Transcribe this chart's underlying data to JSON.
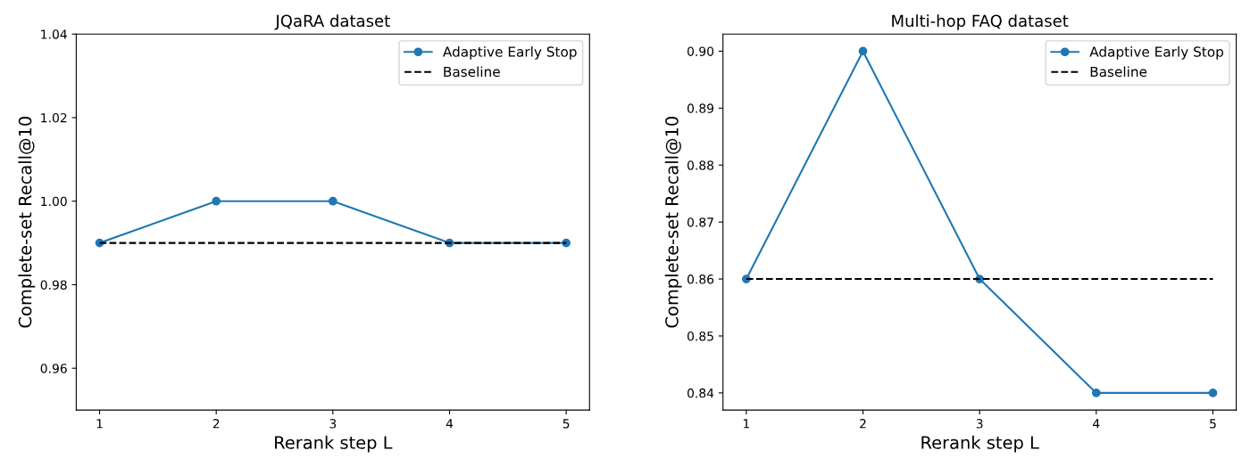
{
  "chart_data": [
    {
      "type": "line",
      "title": "JQaRA dataset",
      "xlabel": "Rerank step L",
      "ylabel": "Complete-set Recall@10",
      "x": [
        1,
        2,
        3,
        4,
        5
      ],
      "xlim": [
        0.8,
        5.2
      ],
      "xticks": [
        1,
        2,
        3,
        4,
        5
      ],
      "ylim": [
        0.95,
        1.04
      ],
      "yticks": [
        {
          "value": 0.96,
          "label": "0.96"
        },
        {
          "value": 0.98,
          "label": "0.98"
        },
        {
          "value": 1.0,
          "label": "1.00"
        },
        {
          "value": 1.02,
          "label": "1.02"
        },
        {
          "value": 1.04,
          "label": "1.04"
        }
      ],
      "legend": "top right",
      "grid": false,
      "series": [
        {
          "name": "Adaptive Early Stop",
          "color": "#1f77b4",
          "marker": "circle",
          "line_style": "solid",
          "values": [
            0.99,
            1.0,
            1.0,
            0.99,
            0.99
          ]
        },
        {
          "name": "Baseline",
          "color": "#000000",
          "marker": "none",
          "line_style": "dashed",
          "values": [
            0.99,
            0.99,
            0.99,
            0.99,
            0.99
          ]
        }
      ]
    },
    {
      "type": "line",
      "title": "Multi-hop FAQ dataset",
      "xlabel": "Rerank step L",
      "ylabel": "Complete-set Recall@10",
      "x": [
        1,
        2,
        3,
        4,
        5
      ],
      "xlim": [
        0.8,
        5.2
      ],
      "xticks": [
        1,
        2,
        3,
        4,
        5
      ],
      "ylim": [
        0.837,
        0.903
      ],
      "yticks": [
        {
          "value": 0.84,
          "label": "0.84"
        },
        {
          "value": 0.85,
          "label": "0.85"
        },
        {
          "value": 0.86,
          "label": "0.86"
        },
        {
          "value": 0.87,
          "label": "0.87"
        },
        {
          "value": 0.88,
          "label": "0.88"
        },
        {
          "value": 0.89,
          "label": "0.89"
        },
        {
          "value": 0.9,
          "label": "0.90"
        }
      ],
      "legend": "top right",
      "grid": false,
      "series": [
        {
          "name": "Adaptive Early Stop",
          "color": "#1f77b4",
          "marker": "circle",
          "line_style": "solid",
          "values": [
            0.86,
            0.9,
            0.86,
            0.84,
            0.84
          ]
        },
        {
          "name": "Baseline",
          "color": "#000000",
          "marker": "none",
          "line_style": "dashed",
          "values": [
            0.86,
            0.86,
            0.86,
            0.86,
            0.86
          ]
        }
      ]
    }
  ]
}
